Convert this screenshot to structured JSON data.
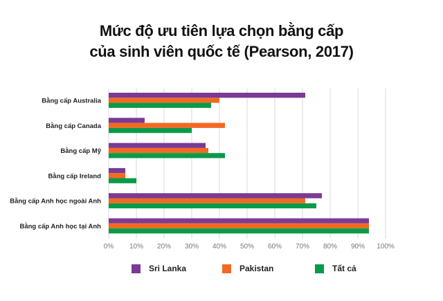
{
  "chart_data": {
    "type": "bar",
    "orientation": "horizontal",
    "title": [
      "Mức độ ưu tiên lựa chọn bằng cấp",
      "của sinh viên quốc tế (Pearson, 2017)"
    ],
    "categories": [
      "Bằng cấp Australia",
      "Bằng cấp Canada",
      "Bằng cấp Mỹ",
      "Bằng cấp Ireland",
      "Bằng cấp Anh học ngoài Anh",
      "Bằng cấp Anh học tại Anh"
    ],
    "series": [
      {
        "name": "Sri Lanka",
        "color": "#7b3a96",
        "values": [
          71,
          13,
          35,
          6,
          77,
          94
        ]
      },
      {
        "name": "Pakistan",
        "color": "#f26a21",
        "values": [
          40,
          42,
          36,
          6,
          71,
          94
        ]
      },
      {
        "name": "Tất cả",
        "color": "#0a9a49",
        "values": [
          37,
          30,
          42,
          10,
          75,
          94
        ]
      }
    ],
    "xticks": [
      "0%",
      "10%",
      "20%",
      "30%",
      "40%",
      "50%",
      "60%",
      "70%",
      "80%",
      "90%",
      "100%"
    ],
    "xlim": [
      0,
      100
    ],
    "grid": true,
    "legend": "bottom"
  }
}
